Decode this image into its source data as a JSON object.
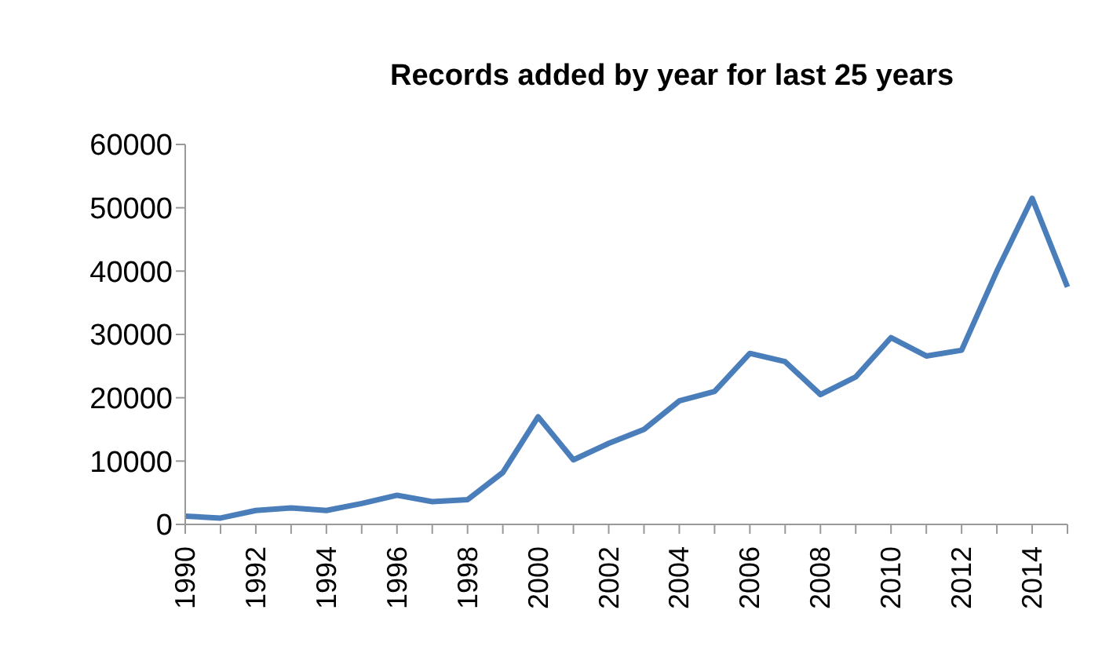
{
  "chart_data": {
    "type": "line",
    "title": "Records added by year for last 25 years",
    "categories": [
      "1990",
      null,
      "1992",
      null,
      "1994",
      null,
      "1996",
      null,
      "1998",
      null,
      "2000",
      null,
      "2002",
      null,
      "2004",
      null,
      "2006",
      null,
      "2008",
      null,
      "2010",
      null,
      "2012",
      null,
      "2014",
      null
    ],
    "series": [
      {
        "color": "#4a7ebb",
        "values": [
          1300,
          1000,
          2200,
          2600,
          2200,
          3300,
          4600,
          3600,
          3900,
          8200,
          17000,
          10200,
          12800,
          15000,
          19500,
          21000,
          27000,
          25700,
          20500,
          23300,
          29500,
          26600,
          27500,
          40000,
          51500,
          37500
        ]
      }
    ],
    "ylim": [
      0,
      60000
    ],
    "yticks": [
      0,
      10000,
      20000,
      30000,
      40000,
      50000,
      60000
    ],
    "grid": false,
    "legend": false,
    "marker": "none",
    "line_style": "solid"
  }
}
